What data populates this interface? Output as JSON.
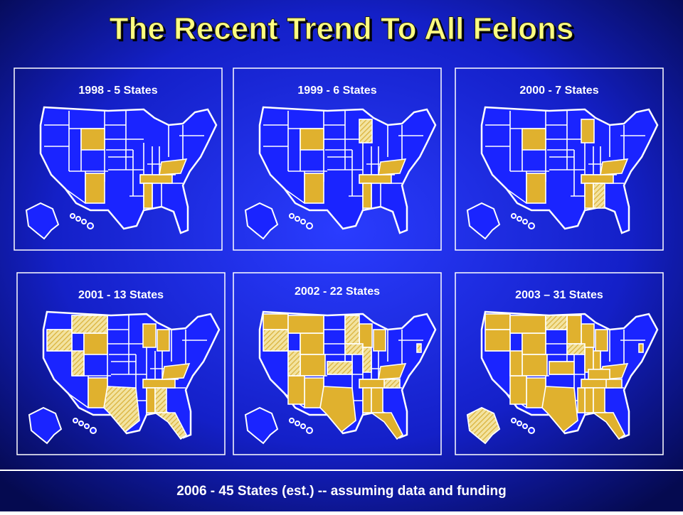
{
  "title": "The Recent Trend To All Felons",
  "panels": [
    {
      "label": "1998 - 5 States"
    },
    {
      "label": "1999 - 6 States"
    },
    {
      "label": "2000 - 7 States"
    },
    {
      "label": "2001 - 13 States"
    },
    {
      "label": "2002 - 22 States"
    },
    {
      "label": "2003 – 31 States"
    }
  ],
  "footer": "2006 - 45 States (est.) -- assuming data and funding"
}
